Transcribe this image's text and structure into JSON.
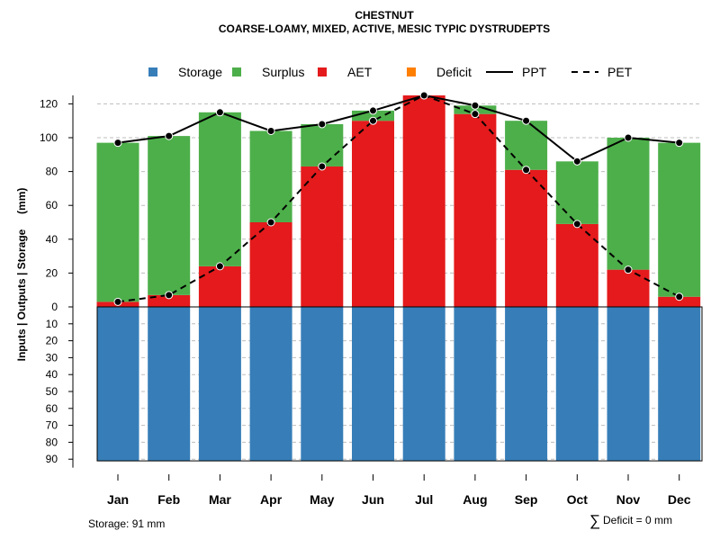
{
  "chart_data": {
    "type": "bar",
    "title": "CHESTNUT",
    "subtitle": "COARSE-LOAMY, MIXED, ACTIVE, MESIC TYPIC DYSTRUDEPTS",
    "ylabel": "Inputs | Outputs | Storage     (mm)",
    "xlabel": "",
    "categories": [
      "Jan",
      "Feb",
      "Mar",
      "Apr",
      "May",
      "Jun",
      "Jul",
      "Aug",
      "Sep",
      "Oct",
      "Nov",
      "Dec"
    ],
    "ylim_top": [
      0,
      130
    ],
    "ylim_bottom": [
      0,
      90
    ],
    "yticks_top": [
      0,
      20,
      40,
      60,
      80,
      100,
      120
    ],
    "yticks_bottom": [
      10,
      20,
      30,
      40,
      50,
      60,
      70,
      80,
      90
    ],
    "series": [
      {
        "name": "Storage",
        "color": "#377eb8",
        "values": [
          91,
          91,
          91,
          91,
          91,
          91,
          91,
          91,
          91,
          91,
          91,
          91
        ]
      },
      {
        "name": "Surplus",
        "color": "#4daf4a",
        "values": [
          94,
          94,
          91,
          54,
          25,
          6,
          0,
          5,
          29,
          37,
          78,
          91
        ]
      },
      {
        "name": "AET",
        "color": "#e41a1c",
        "values": [
          3,
          7,
          24,
          50,
          83,
          110,
          125,
          114,
          81,
          49,
          22,
          6
        ]
      },
      {
        "name": "Deficit",
        "color": "#ff7f00",
        "values": [
          0,
          0,
          0,
          0,
          0,
          0,
          0,
          0,
          0,
          0,
          0,
          0
        ]
      }
    ],
    "lines": [
      {
        "name": "PPT",
        "style": "solid",
        "values": [
          97,
          101,
          115,
          104,
          108,
          116,
          125,
          119,
          110,
          86,
          100,
          97
        ]
      },
      {
        "name": "PET",
        "style": "dashed",
        "values": [
          3,
          7,
          24,
          50,
          83,
          110,
          125,
          114,
          81,
          49,
          22,
          6
        ]
      }
    ],
    "legend": [
      "Storage",
      "Surplus",
      "AET",
      "Deficit",
      "PPT",
      "PET"
    ],
    "legend_position": "top",
    "grid": true,
    "annotations": {
      "storage": "Storage: 91 mm",
      "deficit_sum_symbol": "∑",
      "deficit_sum": "Deficit = 0 mm"
    }
  }
}
